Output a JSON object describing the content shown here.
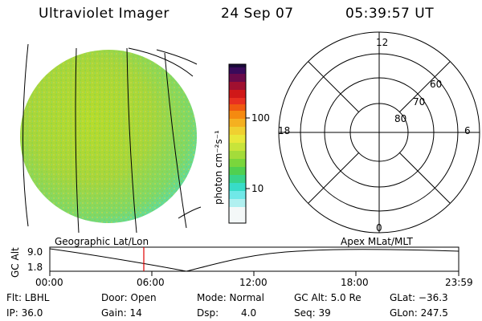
{
  "header": {
    "instrument": "Ultraviolet Imager",
    "date": "24 Sep 07",
    "time": "05:39:57 UT"
  },
  "colorbar": {
    "unit_label": "photon cm⁻²s⁻¹",
    "ticks": [
      "100",
      "10"
    ]
  },
  "polar_plot": {
    "mlt_labels": {
      "top": "12",
      "left": "18",
      "right": "6",
      "bottom": "0"
    },
    "lat_labels": [
      "60",
      "70",
      "80"
    ]
  },
  "timeline": {
    "left_label": "Geographic Lat/Lon",
    "right_label": "Apex MLat/MLT",
    "y_axis_title": "GC Alt",
    "y_ticks": [
      "9.0",
      "1.8"
    ],
    "x_ticks": [
      "00:00",
      "06:00",
      "12:00",
      "18:00",
      "23:59"
    ],
    "current_time_marker_hour": 5.67
  },
  "info": {
    "row1": {
      "flt": "Flt: LBHL",
      "door": "Door: Open",
      "mode": "Mode: Normal",
      "gc_alt": "GC Alt: 5.0 Re",
      "glat": "GLat: −36.3"
    },
    "row2": {
      "ip": "IP: 36.0",
      "gain": "Gain: 14",
      "dsp_label": "Dsp:",
      "dsp_value": "4.0",
      "seq": "Seq: 39",
      "glon": "GLon: 247.5"
    }
  }
}
